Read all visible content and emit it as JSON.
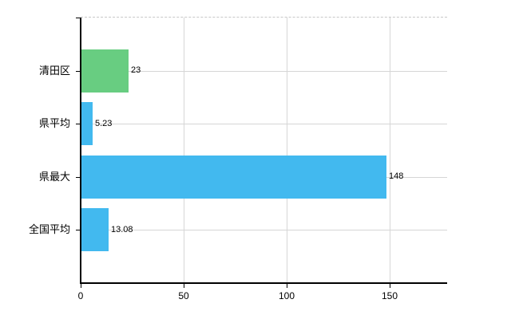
{
  "chart_data": {
    "type": "bar",
    "orientation": "horizontal",
    "title": "",
    "categories": [
      "清田区",
      "県平均",
      "県最大",
      "全国平均"
    ],
    "values": [
      23,
      5.23,
      148,
      13.08
    ],
    "value_labels": [
      "23",
      "5.23",
      "148",
      "13.08"
    ],
    "bar_colors": [
      "#68cd81",
      "#42b9ef",
      "#42b9ef",
      "#42b9ef"
    ],
    "x_ticks": [
      0,
      50,
      100,
      150
    ],
    "x_tick_labels": [
      "0",
      "50",
      "100",
      "150"
    ],
    "xlim": [
      0,
      178
    ],
    "grid": true,
    "legend": false
  },
  "style": {
    "background": "#ffffff",
    "axis_color": "#000000",
    "tick_color": "#000000",
    "gridline_color": "#d6d6d6",
    "top_border_color": "#c8c8c8",
    "label_color": "#000000"
  }
}
